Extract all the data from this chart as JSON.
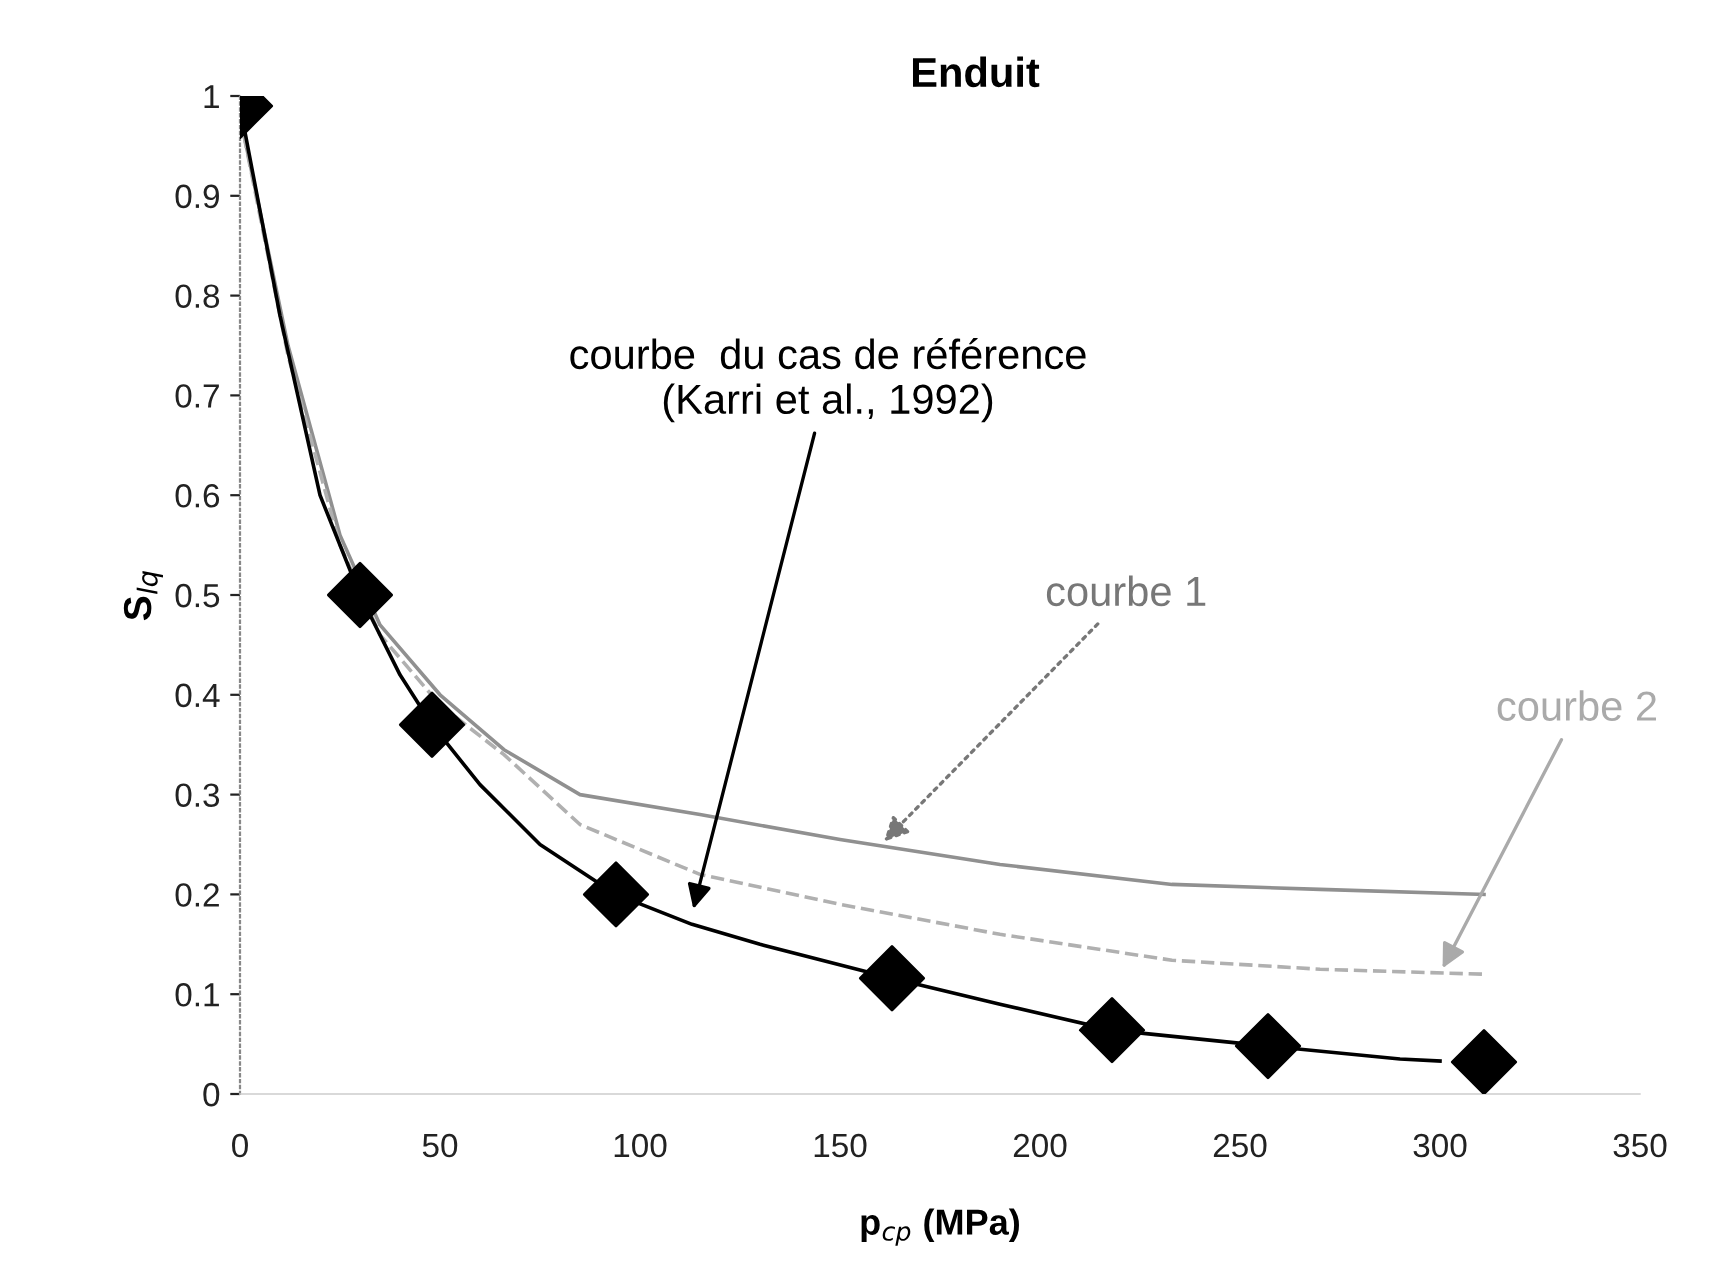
{
  "chart_data": {
    "type": "line",
    "title": "Enduit",
    "xlabel": "p$_{cp}$ (MPa)",
    "ylabel": "S$_{lq}$",
    "xlim": [
      0,
      350
    ],
    "xticks": [
      0,
      50,
      100,
      150,
      200,
      250,
      300,
      350
    ],
    "ylim": [
      0,
      1
    ],
    "yticks": [
      0,
      0.1,
      0.2,
      0.3,
      0.4,
      0.5,
      0.6,
      0.7,
      0.8,
      0.9,
      1
    ],
    "grid": false,
    "legend": false,
    "series": [
      {
        "type": "line",
        "color": "#909090",
        "line_style": "solid",
        "marker": "none",
        "x": [
          0,
          12,
          25,
          35,
          50,
          66,
          85,
          115,
          150,
          190,
          233,
          270,
          311
        ],
        "values": [
          0.98,
          0.75,
          0.56,
          0.47,
          0.4,
          0.345,
          0.3,
          0.28,
          0.255,
          0.23,
          0.21,
          0.205,
          0.2
        ]
      },
      {
        "type": "line",
        "color": "#b0b0b0",
        "line_style": "dashed",
        "marker": "none",
        "x": [
          0,
          12,
          25,
          35,
          50,
          66,
          85,
          115,
          150,
          190,
          233,
          270,
          311
        ],
        "values": [
          0.98,
          0.74,
          0.55,
          0.46,
          0.39,
          0.34,
          0.27,
          0.22,
          0.19,
          0.16,
          0.134,
          0.125,
          0.12
        ]
      },
      {
        "type": "line",
        "color": "#000000",
        "line_style": "solid",
        "marker": "none",
        "x": [
          0,
          10,
          20,
          30,
          40,
          48,
          60,
          75,
          94,
          113,
          130,
          163,
          190,
          218,
          257,
          290,
          300
        ],
        "values": [
          0.99,
          0.78,
          0.6,
          0.5,
          0.42,
          0.37,
          0.31,
          0.25,
          0.2,
          0.17,
          0.15,
          0.116,
          0.09,
          0.064,
          0.048,
          0.035,
          0.033
        ]
      },
      {
        "type": "scatter",
        "color": "#000000",
        "marker": "diamond",
        "x": [
          0,
          30,
          48,
          94,
          163,
          218,
          257,
          311
        ],
        "values": [
          0.99,
          0.5,
          0.37,
          0.2,
          0.116,
          0.064,
          0.048,
          0.032
        ]
      }
    ],
    "annotations": [
      {
        "text": "courbe  du cas de référence\n(Karri et al., 1992)",
        "x": 113,
        "y": 0.18
      },
      {
        "text": "courbe 1",
        "x": 160,
        "y": 0.249
      },
      {
        "text": "courbe 2",
        "x": 300,
        "y": 0.121
      }
    ]
  }
}
